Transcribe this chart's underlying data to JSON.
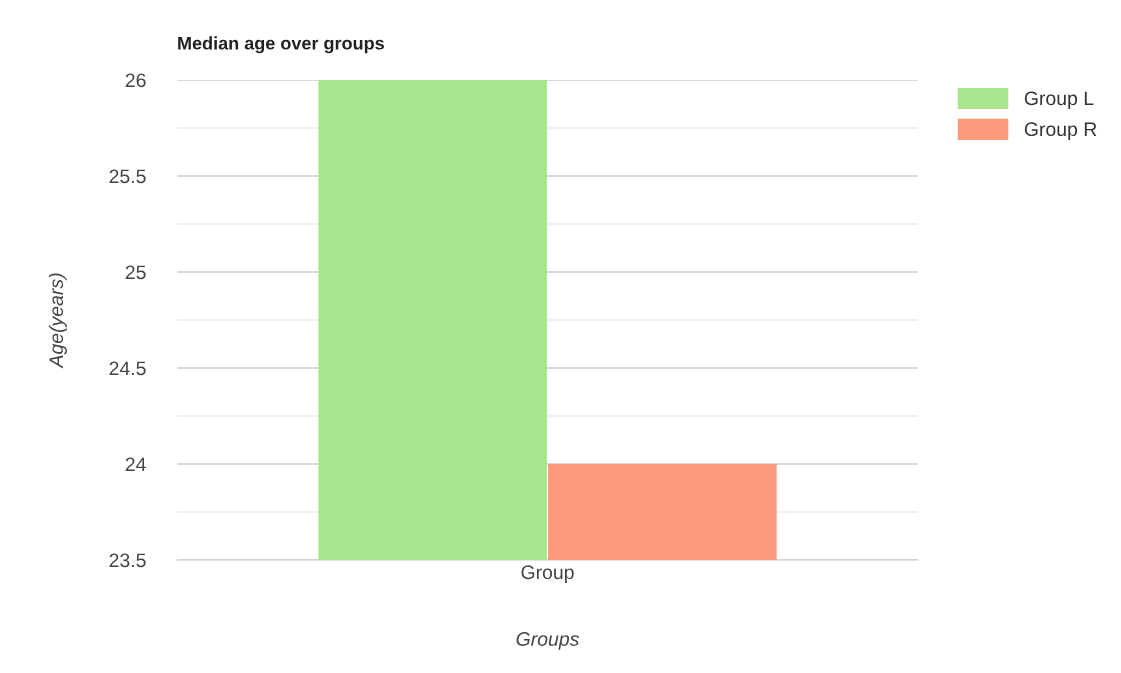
{
  "chart_data": {
    "type": "bar",
    "title": "Median age over groups",
    "xlabel": "Groups",
    "ylabel": "Age(years)",
    "categories": [
      "Group"
    ],
    "series": [
      {
        "name": "Group L",
        "color": "#a8e68e",
        "values": [
          26
        ]
      },
      {
        "name": "Group R",
        "color": "#fc9a7e",
        "values": [
          24
        ]
      }
    ],
    "ylim": [
      23.5,
      26
    ],
    "yticks": [
      23.5,
      {
        "value": 23.75,
        "label": null
      },
      24,
      {
        "value": 24.25,
        "label": null
      },
      24.5,
      {
        "value": 24.75,
        "label": null
      },
      25,
      {
        "value": 25.25,
        "label": null
      },
      25.5,
      {
        "value": 25.75,
        "label": null
      },
      26
    ],
    "grid": "y",
    "legend": "top right"
  }
}
